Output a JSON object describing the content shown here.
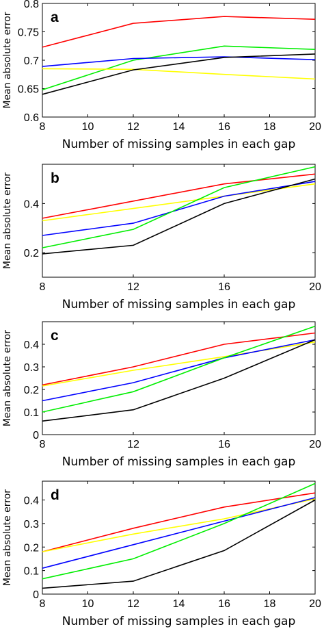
{
  "figure": {
    "panels": [
      "a",
      "b",
      "c",
      "d"
    ]
  },
  "chart_data": [
    {
      "type": "line",
      "panel": "a",
      "xlabel": "Number of missing samples in each gap",
      "ylabel": "Mean absolute error",
      "xlim": [
        8,
        20
      ],
      "ylim": [
        0.6,
        0.8
      ],
      "xticks": [
        8,
        10,
        12,
        14,
        16,
        18,
        20
      ],
      "xtick_labels": [
        "8",
        "10",
        "12",
        "14",
        "16",
        "18",
        "20"
      ],
      "yticks": [
        0.6,
        0.65,
        0.7,
        0.75,
        0.8
      ],
      "ytick_labels": [
        "0.6",
        "0.65",
        "0.7",
        "0.75",
        "0.8"
      ],
      "grid": false,
      "x": [
        8,
        12,
        16,
        20
      ],
      "series": [
        {
          "color": "#ff0000",
          "values": [
            0.723,
            0.765,
            0.777,
            0.772
          ]
        },
        {
          "color": "#00ee00",
          "values": [
            0.648,
            0.7,
            0.725,
            0.719
          ]
        },
        {
          "color": "#0000ff",
          "values": [
            0.689,
            0.703,
            0.706,
            0.701
          ]
        },
        {
          "color": "#ffff00",
          "values": [
            0.685,
            0.684,
            0.675,
            0.667
          ]
        },
        {
          "color": "#000000",
          "values": [
            0.64,
            0.683,
            0.705,
            0.711
          ]
        }
      ]
    },
    {
      "type": "line",
      "panel": "b",
      "xlabel": "Number of missing samples in each gap",
      "ylabel": "Mean absolute error",
      "xlim": [
        8,
        20
      ],
      "ylim": [
        0.1,
        0.56
      ],
      "xticks": [
        8,
        12,
        16,
        20
      ],
      "xtick_labels": [
        "8",
        "12",
        "16",
        "20"
      ],
      "yticks": [
        0.2,
        0.4
      ],
      "ytick_labels": [
        "0.2",
        "0.4"
      ],
      "grid": false,
      "x": [
        8,
        12,
        16,
        20
      ],
      "series": [
        {
          "color": "#ff0000",
          "values": [
            0.34,
            0.41,
            0.48,
            0.52
          ]
        },
        {
          "color": "#ffff00",
          "values": [
            0.33,
            0.38,
            0.43,
            0.48
          ]
        },
        {
          "color": "#0000ff",
          "values": [
            0.27,
            0.32,
            0.43,
            0.49
          ]
        },
        {
          "color": "#00ee00",
          "values": [
            0.22,
            0.295,
            0.465,
            0.55
          ]
        },
        {
          "color": "#000000",
          "values": [
            0.195,
            0.23,
            0.4,
            0.5
          ]
        }
      ]
    },
    {
      "type": "line",
      "panel": "c",
      "xlabel": "Number of missing samples in each gap",
      "ylabel": "Mean absolute error",
      "xlim": [
        8,
        20
      ],
      "ylim": [
        0,
        0.5
      ],
      "xticks": [
        8,
        12,
        16,
        20
      ],
      "xtick_labels": [
        "8",
        "12",
        "16",
        "20"
      ],
      "yticks": [
        0,
        0.1,
        0.2,
        0.3,
        0.4
      ],
      "ytick_labels": [
        "0",
        "0.1",
        "0.2",
        "0.3",
        "0.4"
      ],
      "grid": false,
      "x": [
        8,
        12,
        16,
        20
      ],
      "series": [
        {
          "color": "#ff0000",
          "values": [
            0.22,
            0.3,
            0.4,
            0.45
          ]
        },
        {
          "color": "#ffff00",
          "values": [
            0.215,
            0.285,
            0.345,
            0.41
          ]
        },
        {
          "color": "#0000ff",
          "values": [
            0.15,
            0.23,
            0.34,
            0.42
          ]
        },
        {
          "color": "#00ee00",
          "values": [
            0.1,
            0.19,
            0.34,
            0.48
          ]
        },
        {
          "color": "#000000",
          "values": [
            0.06,
            0.11,
            0.25,
            0.42
          ]
        }
      ]
    },
    {
      "type": "line",
      "panel": "d",
      "xlabel": "Number of missing samples in each gap",
      "ylabel": "Mean absolute error",
      "xlim": [
        8,
        20
      ],
      "ylim": [
        0,
        0.48
      ],
      "xticks": [
        8,
        10,
        12,
        14,
        16,
        18,
        20
      ],
      "xtick_labels": [
        "8",
        "10",
        "12",
        "14",
        "16",
        "18",
        "20"
      ],
      "yticks": [
        0,
        0.1,
        0.2,
        0.3,
        0.4
      ],
      "ytick_labels": [
        "0",
        "0.1",
        "0.2",
        "0.3",
        "0.4"
      ],
      "grid": false,
      "x": [
        8,
        12,
        16,
        20
      ],
      "series": [
        {
          "color": "#ff0000",
          "values": [
            0.18,
            0.28,
            0.37,
            0.43
          ]
        },
        {
          "color": "#ffff00",
          "values": [
            0.18,
            0.255,
            0.32,
            0.405
          ]
        },
        {
          "color": "#0000ff",
          "values": [
            0.11,
            0.21,
            0.31,
            0.41
          ]
        },
        {
          "color": "#00ee00",
          "values": [
            0.065,
            0.15,
            0.3,
            0.47
          ]
        },
        {
          "color": "#000000",
          "values": [
            0.025,
            0.055,
            0.185,
            0.4
          ]
        }
      ]
    }
  ]
}
